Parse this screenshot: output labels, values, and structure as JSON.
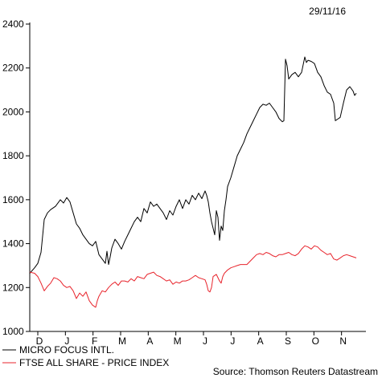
{
  "chart_data": {
    "type": "line",
    "date": "29/11/16",
    "source": "Source: Thomson Reuters Datastream",
    "ylim": [
      1000,
      2400
    ],
    "y_ticks": [
      1000,
      1200,
      1400,
      1600,
      1800,
      2000,
      2200,
      2400
    ],
    "x_ticks": [
      "D",
      "J",
      "F",
      "M",
      "A",
      "M",
      "J",
      "J",
      "A",
      "S",
      "O",
      "N"
    ],
    "legend_position": "bottom-left",
    "series": [
      {
        "name": "MICRO FOCUS INTL.",
        "color": "#000000",
        "values": [
          [
            0,
            1265
          ],
          [
            3,
            1290
          ],
          [
            5,
            1310
          ],
          [
            7,
            1360
          ],
          [
            9,
            1510
          ],
          [
            11,
            1540
          ],
          [
            13,
            1555
          ],
          [
            16,
            1570
          ],
          [
            19,
            1600
          ],
          [
            21,
            1585
          ],
          [
            23,
            1610
          ],
          [
            25,
            1590
          ],
          [
            27,
            1540
          ],
          [
            29,
            1490
          ],
          [
            31,
            1470
          ],
          [
            33,
            1440
          ],
          [
            35,
            1420
          ],
          [
            37,
            1400
          ],
          [
            39,
            1390
          ],
          [
            41,
            1410
          ],
          [
            43,
            1350
          ],
          [
            45,
            1330
          ],
          [
            47,
            1310
          ],
          [
            48,
            1365
          ],
          [
            49,
            1305
          ],
          [
            50,
            1340
          ],
          [
            51,
            1380
          ],
          [
            53,
            1420
          ],
          [
            55,
            1400
          ],
          [
            57,
            1375
          ],
          [
            59,
            1410
          ],
          [
            61,
            1440
          ],
          [
            63,
            1470
          ],
          [
            65,
            1500
          ],
          [
            67,
            1520
          ],
          [
            69,
            1500
          ],
          [
            71,
            1560
          ],
          [
            73,
            1540
          ],
          [
            75,
            1590
          ],
          [
            77,
            1570
          ],
          [
            79,
            1580
          ],
          [
            81,
            1560
          ],
          [
            83,
            1540
          ],
          [
            85,
            1510
          ],
          [
            87,
            1550
          ],
          [
            89,
            1530
          ],
          [
            91,
            1570
          ],
          [
            93,
            1600
          ],
          [
            95,
            1560
          ],
          [
            97,
            1600
          ],
          [
            99,
            1580
          ],
          [
            101,
            1620
          ],
          [
            103,
            1600
          ],
          [
            105,
            1630
          ],
          [
            107,
            1605
          ],
          [
            109,
            1640
          ],
          [
            110,
            1620
          ],
          [
            111,
            1590
          ],
          [
            112,
            1540
          ],
          [
            113,
            1500
          ],
          [
            114,
            1470
          ],
          [
            115,
            1440
          ],
          [
            116,
            1550
          ],
          [
            117,
            1520
          ],
          [
            118,
            1415
          ],
          [
            119,
            1480
          ],
          [
            120,
            1460
          ],
          [
            121,
            1550
          ],
          [
            122,
            1600
          ],
          [
            123,
            1660
          ],
          [
            125,
            1700
          ],
          [
            127,
            1750
          ],
          [
            129,
            1800
          ],
          [
            131,
            1830
          ],
          [
            133,
            1860
          ],
          [
            135,
            1900
          ],
          [
            137,
            1930
          ],
          [
            139,
            1960
          ],
          [
            141,
            1990
          ],
          [
            143,
            2020
          ],
          [
            145,
            2035
          ],
          [
            147,
            2030
          ],
          [
            149,
            2040
          ],
          [
            151,
            2020
          ],
          [
            153,
            2000
          ],
          [
            155,
            1970
          ],
          [
            157,
            1955
          ],
          [
            158,
            1960
          ],
          [
            159,
            2240
          ],
          [
            160,
            2210
          ],
          [
            161,
            2150
          ],
          [
            163,
            2170
          ],
          [
            165,
            2180
          ],
          [
            167,
            2160
          ],
          [
            169,
            2180
          ],
          [
            171,
            2250
          ],
          [
            172,
            2225
          ],
          [
            173,
            2235
          ],
          [
            175,
            2230
          ],
          [
            177,
            2220
          ],
          [
            179,
            2180
          ],
          [
            181,
            2160
          ],
          [
            183,
            2120
          ],
          [
            185,
            2090
          ],
          [
            187,
            2080
          ],
          [
            189,
            2040
          ],
          [
            190,
            1960
          ],
          [
            191,
            1965
          ],
          [
            193,
            1975
          ],
          [
            195,
            2040
          ],
          [
            197,
            2100
          ],
          [
            199,
            2115
          ],
          [
            201,
            2095
          ],
          [
            202,
            2075
          ],
          [
            203,
            2085
          ]
        ]
      },
      {
        "name": "FTSE ALL SHARE - PRICE INDEX",
        "color": "#e8242c",
        "values": [
          [
            0,
            1270
          ],
          [
            3,
            1265
          ],
          [
            5,
            1250
          ],
          [
            7,
            1220
          ],
          [
            9,
            1185
          ],
          [
            11,
            1205
          ],
          [
            13,
            1220
          ],
          [
            15,
            1245
          ],
          [
            17,
            1240
          ],
          [
            19,
            1230
          ],
          [
            21,
            1210
          ],
          [
            23,
            1200
          ],
          [
            25,
            1205
          ],
          [
            27,
            1185
          ],
          [
            29,
            1150
          ],
          [
            31,
            1175
          ],
          [
            33,
            1160
          ],
          [
            35,
            1180
          ],
          [
            37,
            1140
          ],
          [
            39,
            1120
          ],
          [
            41,
            1110
          ],
          [
            42,
            1140
          ],
          [
            43,
            1160
          ],
          [
            45,
            1185
          ],
          [
            47,
            1180
          ],
          [
            49,
            1200
          ],
          [
            51,
            1215
          ],
          [
            53,
            1225
          ],
          [
            55,
            1210
          ],
          [
            57,
            1230
          ],
          [
            59,
            1230
          ],
          [
            61,
            1225
          ],
          [
            63,
            1240
          ],
          [
            65,
            1230
          ],
          [
            67,
            1250
          ],
          [
            69,
            1245
          ],
          [
            71,
            1240
          ],
          [
            73,
            1260
          ],
          [
            75,
            1265
          ],
          [
            77,
            1270
          ],
          [
            79,
            1255
          ],
          [
            81,
            1250
          ],
          [
            83,
            1240
          ],
          [
            85,
            1230
          ],
          [
            87,
            1235
          ],
          [
            89,
            1215
          ],
          [
            91,
            1225
          ],
          [
            93,
            1220
          ],
          [
            95,
            1230
          ],
          [
            97,
            1230
          ],
          [
            99,
            1235
          ],
          [
            101,
            1245
          ],
          [
            103,
            1255
          ],
          [
            105,
            1245
          ],
          [
            107,
            1240
          ],
          [
            109,
            1235
          ],
          [
            110,
            1215
          ],
          [
            111,
            1185
          ],
          [
            112,
            1180
          ],
          [
            113,
            1200
          ],
          [
            114,
            1250
          ],
          [
            116,
            1260
          ],
          [
            118,
            1230
          ],
          [
            119,
            1220
          ],
          [
            120,
            1250
          ],
          [
            121,
            1265
          ],
          [
            123,
            1280
          ],
          [
            125,
            1290
          ],
          [
            127,
            1295
          ],
          [
            129,
            1300
          ],
          [
            131,
            1305
          ],
          [
            133,
            1305
          ],
          [
            135,
            1305
          ],
          [
            137,
            1320
          ],
          [
            139,
            1335
          ],
          [
            141,
            1350
          ],
          [
            143,
            1355
          ],
          [
            145,
            1350
          ],
          [
            147,
            1360
          ],
          [
            149,
            1355
          ],
          [
            151,
            1345
          ],
          [
            153,
            1340
          ],
          [
            155,
            1350
          ],
          [
            157,
            1350
          ],
          [
            159,
            1355
          ],
          [
            161,
            1360
          ],
          [
            163,
            1350
          ],
          [
            165,
            1345
          ],
          [
            167,
            1355
          ],
          [
            169,
            1375
          ],
          [
            171,
            1390
          ],
          [
            173,
            1385
          ],
          [
            175,
            1375
          ],
          [
            177,
            1390
          ],
          [
            179,
            1385
          ],
          [
            181,
            1370
          ],
          [
            183,
            1360
          ],
          [
            185,
            1350
          ],
          [
            187,
            1355
          ],
          [
            189,
            1330
          ],
          [
            191,
            1325
          ],
          [
            193,
            1335
          ],
          [
            195,
            1345
          ],
          [
            197,
            1350
          ],
          [
            199,
            1345
          ],
          [
            201,
            1340
          ],
          [
            203,
            1335
          ]
        ]
      }
    ]
  }
}
